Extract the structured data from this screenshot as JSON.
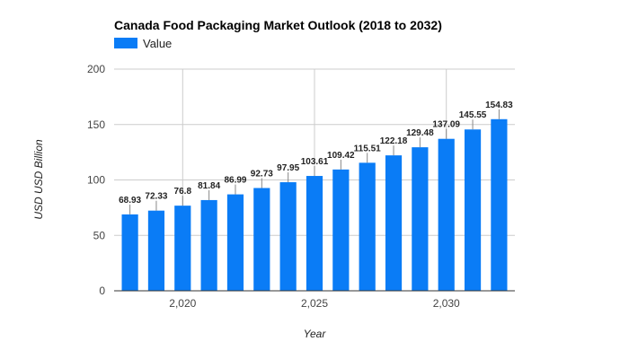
{
  "chart_data": {
    "type": "bar",
    "title": "Canada Food Packaging Market Outlook (2018 to 2032)",
    "xlabel": "Year",
    "ylabel": "USD USD Billion",
    "x": [
      2018,
      2019,
      2020,
      2021,
      2022,
      2023,
      2024,
      2025,
      2026,
      2027,
      2028,
      2029,
      2030,
      2031,
      2032
    ],
    "series": [
      {
        "name": "Value",
        "color": "#0a7cf6",
        "values": [
          68.93,
          72.33,
          76.8,
          81.84,
          86.99,
          92.73,
          97.95,
          103.61,
          109.42,
          115.51,
          122.18,
          129.48,
          137.09,
          145.55,
          154.83
        ],
        "data_labels": [
          "68.93",
          "72.33",
          "76.8",
          "81.84",
          "86.99",
          "92.73",
          "97.95",
          "103.61",
          "109.42",
          "115.51",
          "122.18",
          "129.48",
          "137.09",
          "145.55",
          "154.83"
        ]
      }
    ],
    "ylim": [
      0,
      200
    ],
    "xlim": [
      2017.4,
      2032.6
    ],
    "y_ticks": [
      0,
      50,
      100,
      150,
      200
    ],
    "y_tick_labels": [
      "0",
      "50",
      "100",
      "150",
      "200"
    ],
    "x_ticks": [
      2020,
      2025,
      2030
    ],
    "x_tick_labels": [
      "2,020",
      "2,025",
      "2,030"
    ],
    "grid": true,
    "legend_position": "top-left",
    "grid_color": "#cccccc",
    "axis_color": "#333333"
  }
}
